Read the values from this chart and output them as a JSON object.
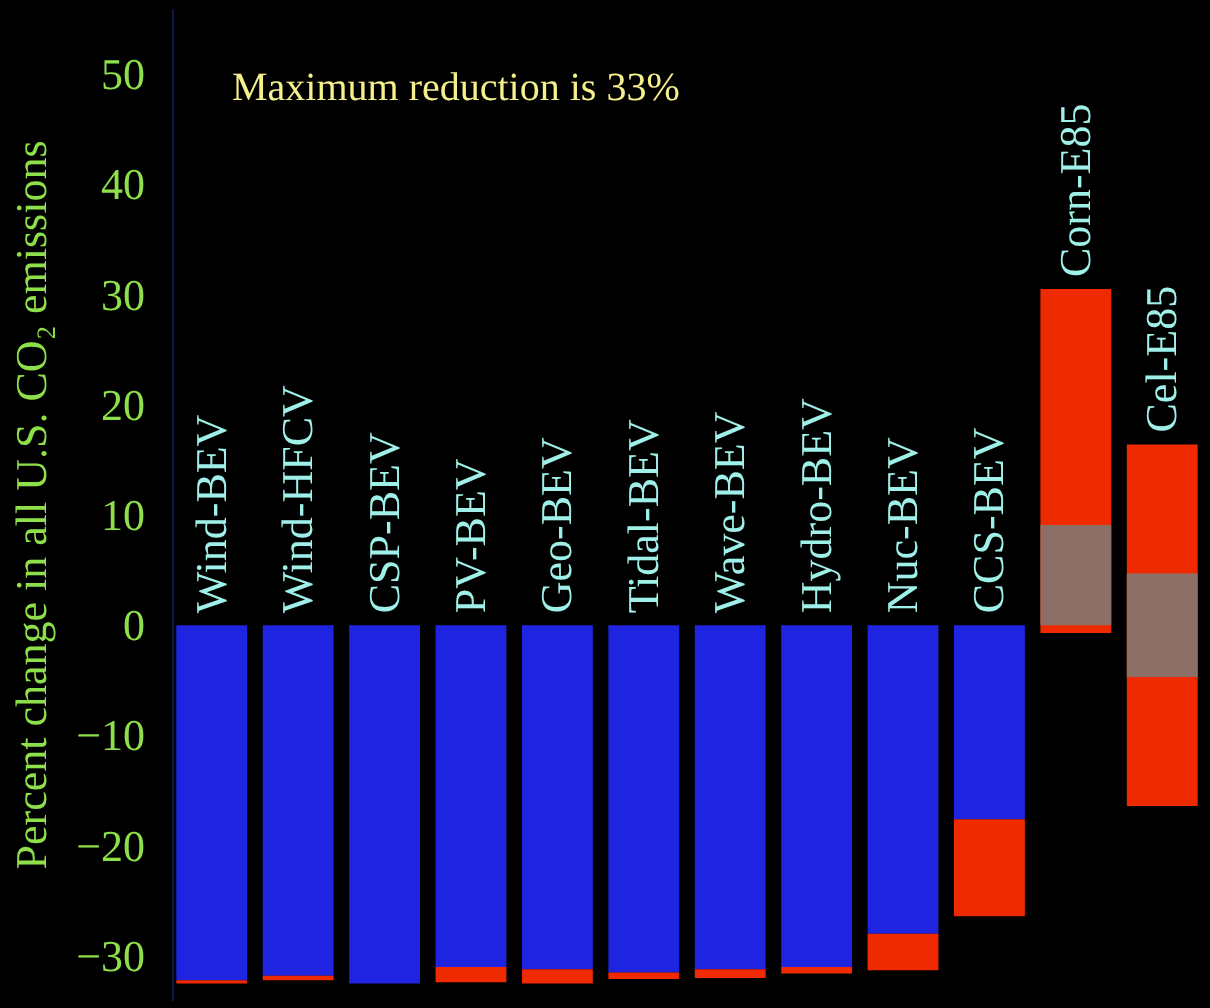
{
  "chart_data": {
    "type": "bar",
    "ylabel": "Percent change in all U.S. CO₂ emissions",
    "annotations": [
      "Maximum reduction is 33%"
    ],
    "categories": [
      "Wind-BEV",
      "Wind-HFCV",
      "CSP-BEV",
      "PV-BEV",
      "Geo-BEV",
      "Tidal-BEV",
      "Wave-BEV",
      "Hydro-BEV",
      "Nuc-BEV",
      "CCS-BEV",
      "Corn-E85",
      "Cel-E85"
    ],
    "series": [
      {
        "color": "#1f24e0",
        "base": [
          0,
          0,
          0,
          0,
          0,
          0,
          0,
          0,
          0,
          0,
          null,
          null
        ],
        "values": [
          -32.2,
          -31.8,
          -32.5,
          -31.0,
          -31.2,
          -31.5,
          -31.2,
          -31.0,
          -28.0,
          -17.6,
          null,
          null
        ]
      },
      {
        "color": "#f02a00",
        "base": [
          -32.2,
          -31.8,
          null,
          -31.0,
          -31.2,
          -31.5,
          -31.2,
          -31.0,
          -28.0,
          -17.6,
          -0.7,
          -16.4
        ],
        "values": [
          -0.3,
          -0.4,
          null,
          -1.4,
          -1.3,
          -0.6,
          -0.8,
          -0.6,
          -3.3,
          -8.8,
          31.2,
          32.8
        ]
      },
      {
        "color": "#8c7068",
        "base": [
          null,
          null,
          null,
          null,
          null,
          null,
          null,
          null,
          null,
          null,
          0,
          -4.7
        ],
        "values": [
          null,
          null,
          null,
          null,
          null,
          null,
          null,
          null,
          null,
          null,
          9.1,
          9.4
        ]
      }
    ],
    "ylim": [
      -34,
      56
    ],
    "yticks": [
      -30,
      -20,
      -10,
      0,
      10,
      20,
      30,
      40,
      50
    ],
    "tick_labels": "y",
    "grid": false
  }
}
